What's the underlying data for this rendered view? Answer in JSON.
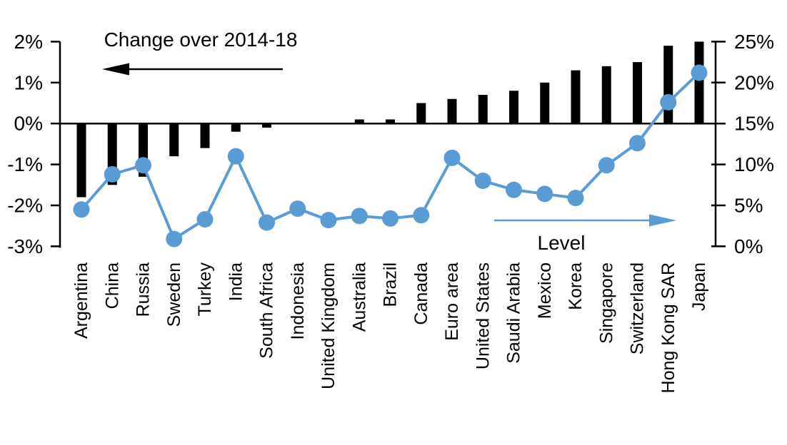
{
  "chart_data": {
    "type": "bar",
    "subtype": "combo bar + line, dual axis",
    "title": "Change over 2014-18",
    "categories": [
      "Argentina",
      "China",
      "Russia",
      "Sweden",
      "Turkey",
      "India",
      "South Africa",
      "Indonesia",
      "United Kingdom",
      "Australia",
      "Brazil",
      "Canada",
      "Euro area",
      "United States",
      "Saudi Arabia",
      "Mexico",
      "Korea",
      "Singapore",
      "Switzerland",
      "Hong Kong SAR",
      "Japan"
    ],
    "series": [
      {
        "name": "Change over 2014-18",
        "type": "bar",
        "axis": "left",
        "color": "#000000",
        "values": [
          -1.8,
          -1.5,
          -1.3,
          -0.8,
          -0.6,
          -0.2,
          -0.1,
          0,
          0,
          0.1,
          0.1,
          0.5,
          0.6,
          0.7,
          0.8,
          1.0,
          1.3,
          1.4,
          1.5,
          1.9,
          2.0
        ]
      },
      {
        "name": "Level",
        "type": "line",
        "axis": "right",
        "color": "#5B9BD5",
        "marker": "circle",
        "values": [
          4.5,
          8.8,
          9.9,
          0.9,
          3.3,
          11.0,
          2.9,
          4.6,
          3.2,
          3.7,
          3.4,
          3.8,
          10.8,
          8.0,
          6.9,
          6.4,
          5.9,
          9.9,
          12.6,
          17.6,
          21.2
        ]
      }
    ],
    "left_axis": {
      "min": -3,
      "max": 2,
      "tick_step": 1,
      "tick_labels": [
        "2%",
        "1%",
        "0%",
        "-1%",
        "-2%",
        "-3%"
      ]
    },
    "right_axis": {
      "min": 0,
      "max": 25,
      "tick_step": 5,
      "tick_labels": [
        "25%",
        "20%",
        "15%",
        "10%",
        "5%",
        "0%"
      ]
    },
    "annotations": [
      {
        "id": "change-annotation",
        "text": "Change over 2014-18",
        "arrow": "left",
        "text_color": "#000000",
        "arrow_color": "#000000"
      },
      {
        "id": "level-annotation",
        "text": "Level",
        "arrow": "right",
        "text_color": "#000000",
        "arrow_color": "#5B9BD5"
      }
    ],
    "grid": false,
    "legend_position": "none",
    "background_color": "#ffffff"
  }
}
